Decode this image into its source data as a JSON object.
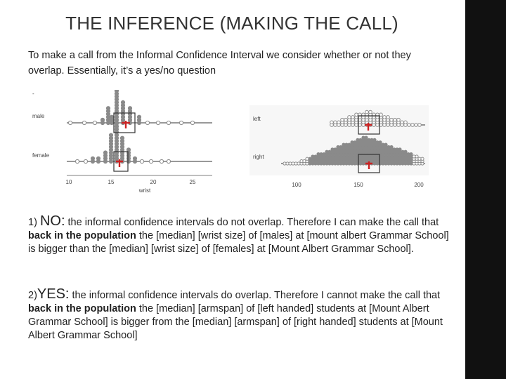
{
  "slide": {
    "title": "THE INFERENCE (MAKING THE CALL)",
    "intro": "To make a call from the Informal Confidence Interval we consider whether or not they overlap. Essentially, it’s a yes/no question"
  },
  "left_plot": {
    "rows": [
      "male",
      "female"
    ],
    "xlabel": "wrist",
    "ticks": [
      "10",
      "15",
      "20",
      "25"
    ]
  },
  "right_plot": {
    "rows": [
      "left",
      "right"
    ],
    "ticks": [
      "100",
      "150",
      "200"
    ]
  },
  "conclusions": [
    {
      "number": "1)",
      "verdict": "NO:",
      "part1": " the informal confidence intervals do not overlap. Therefore I can make the call that ",
      "bold": "back in the population",
      "part2": " the [median] [wrist size] of [males] at [mount albert Grammar School] is bigger than the [median] [wrist size] of [females] at [Mount Albert Grammar School]."
    },
    {
      "number": "2)",
      "verdict": "YES:",
      "part1": " the informal confidence intervals do overlap. Therefore I cannot make the call that ",
      "bold": "back in the population",
      "part2": " the [median] [armspan] of [left handed] students at [Mount Albert Grammar School] is bigger from the [median] [armspan] of [right handed] students at [Mount Albert Grammar School]"
    }
  ],
  "colors": {
    "sidebar": "#111111",
    "dots": "#8a8a8a",
    "median": "#cc2222"
  }
}
